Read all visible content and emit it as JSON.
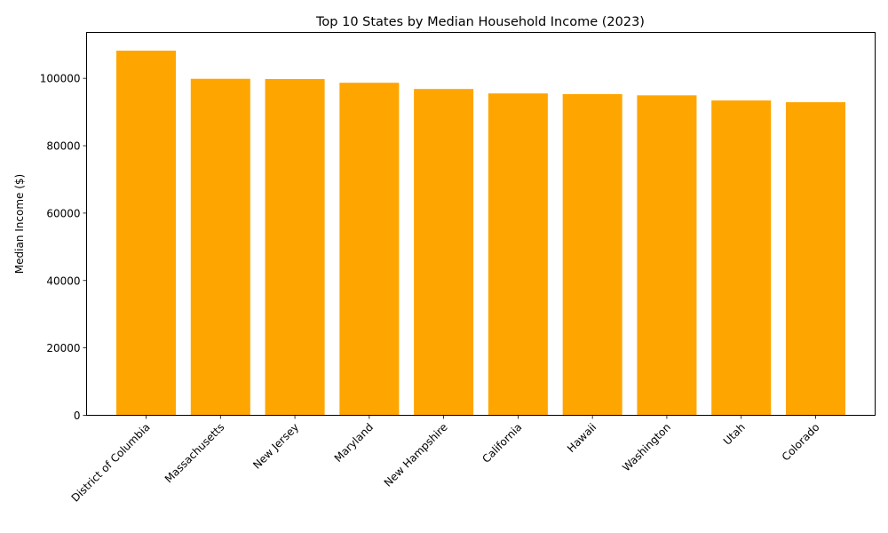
{
  "chart_data": {
    "type": "bar",
    "title": "Top 10 States by Median Household Income (2023)",
    "xlabel": "",
    "ylabel": "Median Income ($)",
    "categories": [
      "District of Columbia",
      "Massachusetts",
      "New Jersey",
      "Maryland",
      "New Hampshire",
      "California",
      "Hawaii",
      "Washington",
      "Utah",
      "Colorado"
    ],
    "values": [
      108210,
      99858,
      99781,
      98678,
      96838,
      95521,
      95322,
      94952,
      93421,
      92911
    ],
    "ylim": [
      0,
      113620
    ],
    "yticks": [
      0,
      20000,
      40000,
      60000,
      80000,
      100000
    ],
    "bar_color": "#ffa500",
    "grid": false,
    "legend": "none"
  }
}
